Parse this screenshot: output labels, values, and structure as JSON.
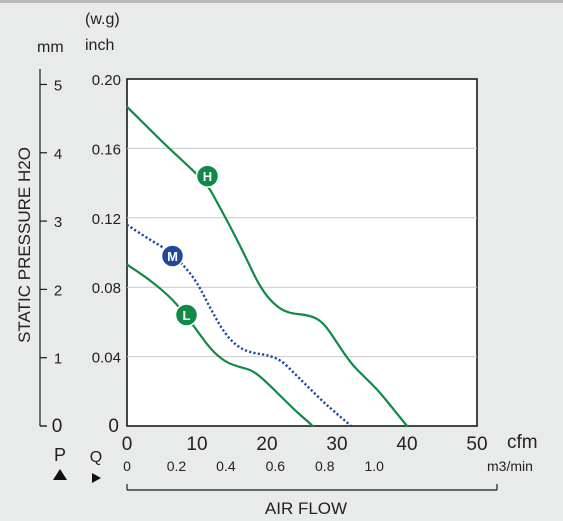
{
  "chart_data": {
    "type": "line",
    "title": "",
    "ylabel": "STATIC PRESSURE H2O",
    "xlabel": "AIR FLOW",
    "y_primary": {
      "unit_top": "(w.g)",
      "unit": "inch",
      "ticks": [
        "0",
        "0.04",
        "0.08",
        "0.12",
        "0.16",
        "0.20"
      ],
      "ylim": [
        0,
        0.2
      ]
    },
    "y_secondary": {
      "unit": "mm",
      "ticks": [
        "0",
        "1",
        "2",
        "3",
        "4",
        "5"
      ],
      "values": [
        0,
        1,
        2,
        3,
        4,
        5
      ]
    },
    "x_primary": {
      "unit": "cfm",
      "ticks": [
        "0",
        "10",
        "20",
        "30",
        "40",
        "50"
      ],
      "xlim": [
        0,
        50
      ]
    },
    "x_secondary": {
      "unit": "m3/min",
      "ticks": [
        "0",
        "0.2",
        "0.4",
        "0.6",
        "0.8",
        "1.0"
      ],
      "values": [
        0,
        0.2,
        0.4,
        0.6,
        0.8,
        1.0
      ]
    },
    "axis_marks": {
      "pressure": "P",
      "flow": "Q"
    },
    "grid": true,
    "series": [
      {
        "name": "H",
        "color": "#0f8a47",
        "dash": "solid",
        "marker_at": [
          11.5,
          0.144
        ],
        "points": [
          [
            0,
            0.184
          ],
          [
            3,
            0.172
          ],
          [
            6,
            0.16
          ],
          [
            9,
            0.149
          ],
          [
            11.5,
            0.139
          ],
          [
            13,
            0.128
          ],
          [
            15,
            0.113
          ],
          [
            17,
            0.097
          ],
          [
            19,
            0.08
          ],
          [
            21,
            0.07
          ],
          [
            23,
            0.065
          ],
          [
            26,
            0.064
          ],
          [
            28,
            0.06
          ],
          [
            30,
            0.048
          ],
          [
            32,
            0.036
          ],
          [
            34,
            0.028
          ],
          [
            36,
            0.02
          ],
          [
            38,
            0.01
          ],
          [
            40,
            0
          ]
        ]
      },
      {
        "name": "M",
        "color": "#1f4a9a",
        "dash": "dotted",
        "marker_at": [
          6.5,
          0.098
        ],
        "points": [
          [
            0,
            0.116
          ],
          [
            3,
            0.108
          ],
          [
            6,
            0.101
          ],
          [
            8,
            0.093
          ],
          [
            10,
            0.083
          ],
          [
            12,
            0.067
          ],
          [
            14,
            0.053
          ],
          [
            16,
            0.045
          ],
          [
            18,
            0.042
          ],
          [
            20,
            0.041
          ],
          [
            22,
            0.038
          ],
          [
            24,
            0.03
          ],
          [
            26,
            0.022
          ],
          [
            28,
            0.014
          ],
          [
            30,
            0.007
          ],
          [
            32,
            0
          ]
        ]
      },
      {
        "name": "L",
        "color": "#0f8a47",
        "dash": "solid",
        "marker_at": [
          8.5,
          0.064
        ],
        "points": [
          [
            0,
            0.093
          ],
          [
            3,
            0.085
          ],
          [
            6,
            0.075
          ],
          [
            8,
            0.066
          ],
          [
            10,
            0.055
          ],
          [
            12,
            0.044
          ],
          [
            14,
            0.037
          ],
          [
            16,
            0.034
          ],
          [
            18,
            0.032
          ],
          [
            20,
            0.025
          ],
          [
            22,
            0.017
          ],
          [
            24,
            0.009
          ],
          [
            26,
            0.002
          ],
          [
            26.5,
            0
          ]
        ]
      }
    ]
  }
}
